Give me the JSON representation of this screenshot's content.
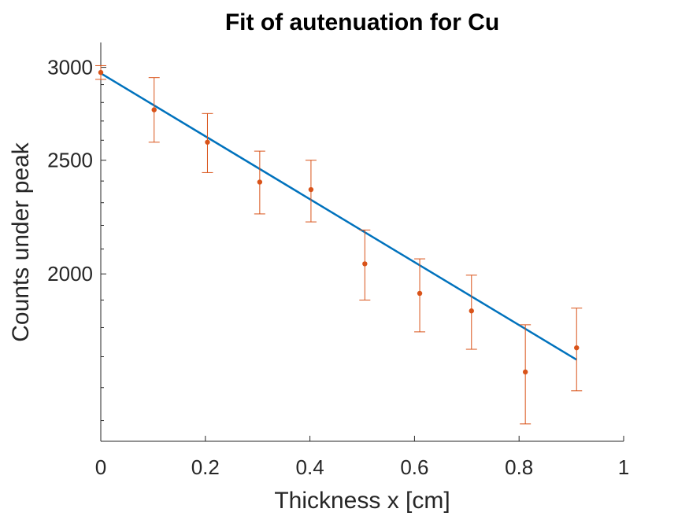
{
  "chart_data": {
    "type": "scatter",
    "title": "Fit of autenuation for Cu",
    "xlabel": "Thickness x [cm]",
    "ylabel": "Counts under peak",
    "xlim": [
      0,
      1
    ],
    "ylim": [
      1440,
      3150
    ],
    "y_scale": "log",
    "grid": false,
    "legend": "none",
    "x_ticks": [
      {
        "value": 0,
        "label": "0"
      },
      {
        "value": 0.2,
        "label": "0.2"
      },
      {
        "value": 0.4,
        "label": "0.4"
      },
      {
        "value": 0.6,
        "label": "0.6"
      },
      {
        "value": 0.8,
        "label": "0.8"
      },
      {
        "value": 1,
        "label": "1"
      }
    ],
    "y_major_ticks": [
      {
        "value": 2000,
        "label": "2000"
      },
      {
        "value": 2500,
        "label": "2500"
      },
      {
        "value": 3000,
        "label": "3000"
      }
    ],
    "y_minor_ticks": [
      1500,
      1600,
      1700,
      1800,
      1900,
      2100,
      2200,
      2300,
      2400,
      2600,
      2700,
      2800,
      2900
    ],
    "data_series": {
      "color": "#d95319",
      "points": [
        {
          "x": 0.0,
          "y": 2970,
          "yerr_low": 2930,
          "yerr_high": 3010
        },
        {
          "x": 0.102,
          "y": 2760,
          "yerr_low": 2590,
          "yerr_high": 2940
        },
        {
          "x": 0.204,
          "y": 2590,
          "yerr_low": 2440,
          "yerr_high": 2740
        },
        {
          "x": 0.304,
          "y": 2395,
          "yerr_low": 2250,
          "yerr_high": 2545
        },
        {
          "x": 0.402,
          "y": 2360,
          "yerr_low": 2215,
          "yerr_high": 2500
        },
        {
          "x": 0.505,
          "y": 2040,
          "yerr_low": 1900,
          "yerr_high": 2180
        },
        {
          "x": 0.61,
          "y": 1925,
          "yerr_low": 1785,
          "yerr_high": 2060
        },
        {
          "x": 0.709,
          "y": 1860,
          "yerr_low": 1725,
          "yerr_high": 1995
        },
        {
          "x": 0.812,
          "y": 1650,
          "yerr_low": 1490,
          "yerr_high": 1810
        },
        {
          "x": 0.91,
          "y": 1730,
          "yerr_low": 1590,
          "yerr_high": 1870
        }
      ]
    },
    "fit_line": {
      "color": "#0072bd",
      "x": [
        0.0,
        0.91
      ],
      "y": [
        2965,
        1690
      ]
    }
  }
}
